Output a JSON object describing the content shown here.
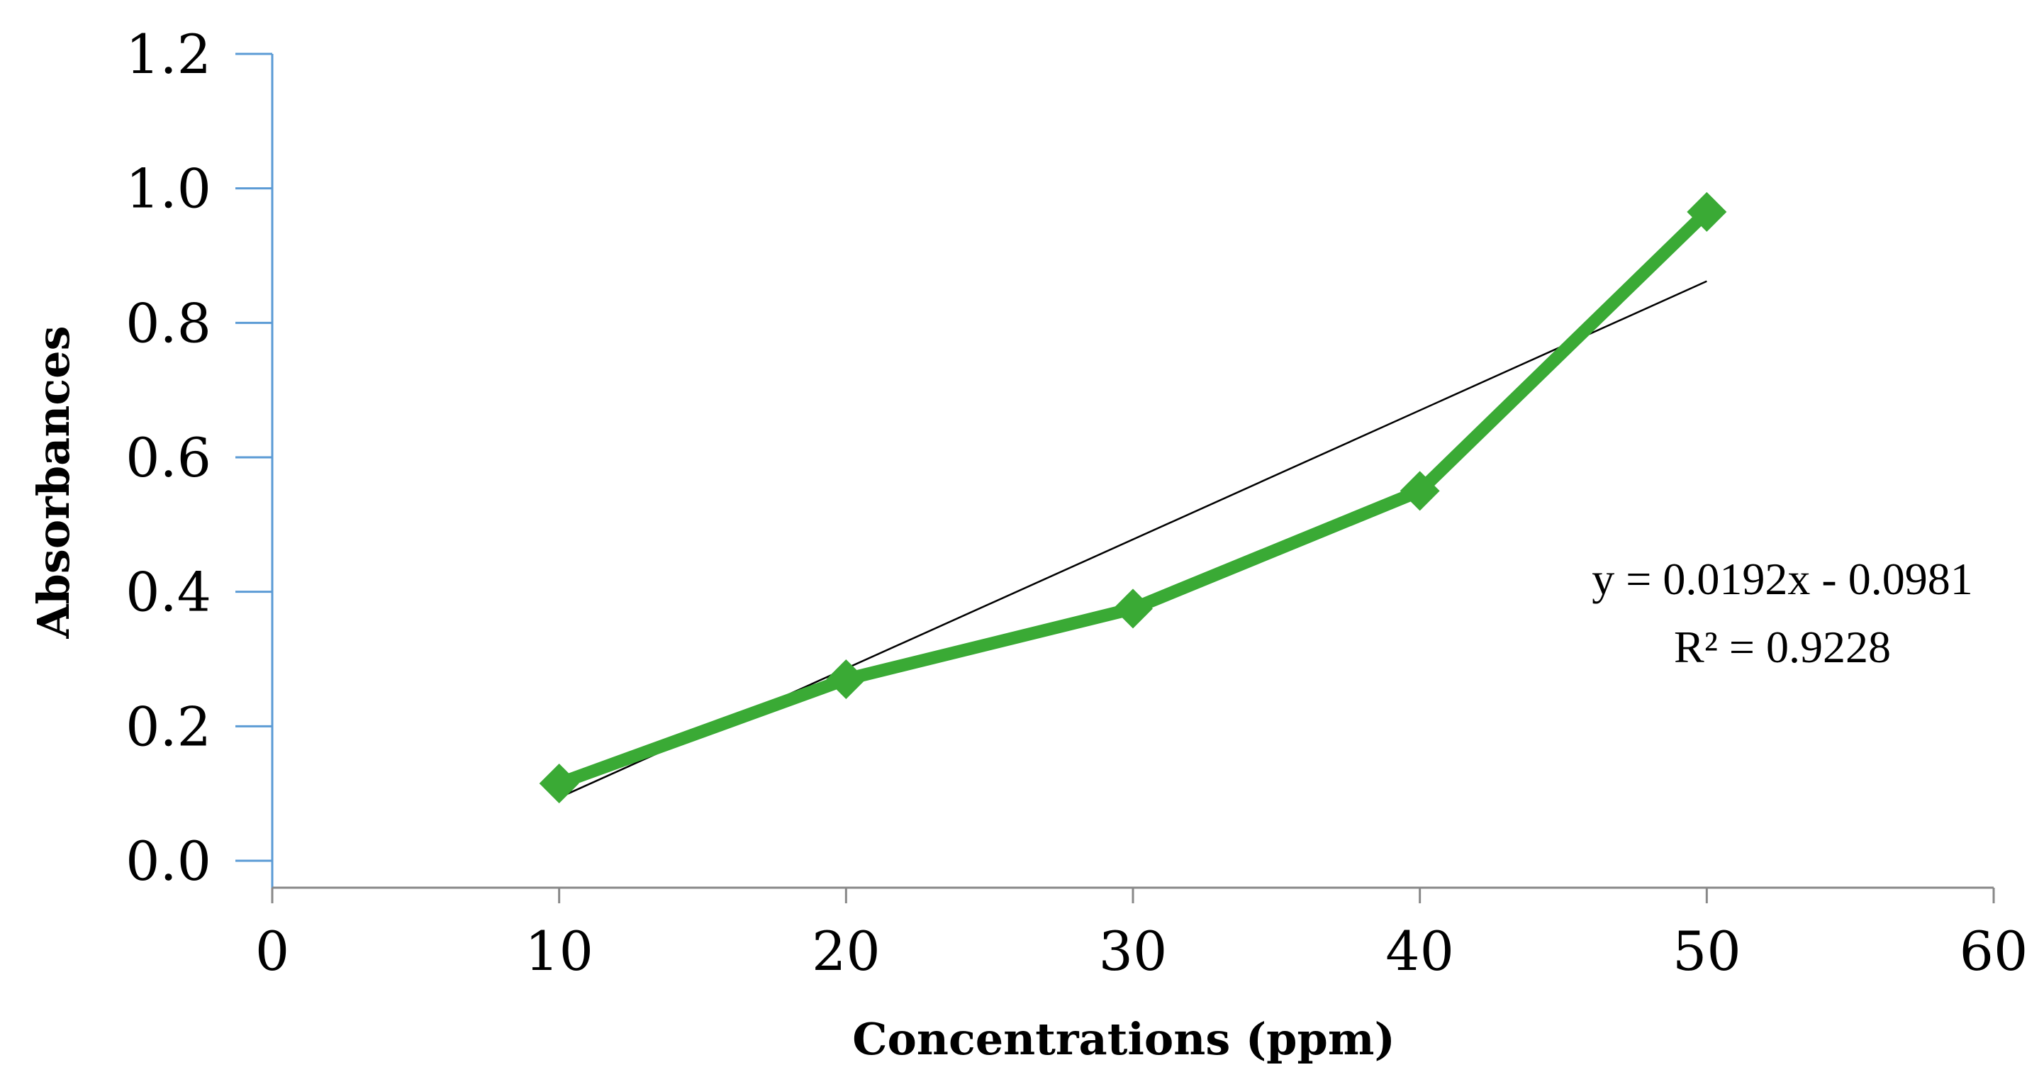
{
  "chart_data": {
    "type": "line",
    "title": "",
    "xlabel": "Concentrations (ppm)",
    "ylabel": "Absorbances",
    "xlim": [
      0,
      60
    ],
    "ylim": [
      0,
      1.2
    ],
    "x_ticks": [
      "0",
      "10",
      "20",
      "30",
      "40",
      "50",
      "60"
    ],
    "y_ticks": [
      "0.0",
      "0.2",
      "0.4",
      "0.6",
      "0.8",
      "1.0",
      "1.2"
    ],
    "grid": false,
    "legend": "none",
    "series": [
      {
        "x": [
          10,
          20,
          30,
          40,
          50
        ],
        "y": [
          0.115,
          0.27,
          0.375,
          0.55,
          0.965
        ],
        "color": "#3aaa35",
        "marker": "diamond"
      }
    ],
    "trendline": {
      "type": "linear",
      "slope": 0.0192,
      "intercept": -0.0981,
      "x_range": [
        10,
        50
      ],
      "color": "#000000",
      "equation_text": "y = 0.0192x - 0.0981",
      "r2_text": "R² = 0.9228"
    },
    "colors": {
      "x_axis": "#888888",
      "y_axis": "#5b9bd5"
    }
  }
}
